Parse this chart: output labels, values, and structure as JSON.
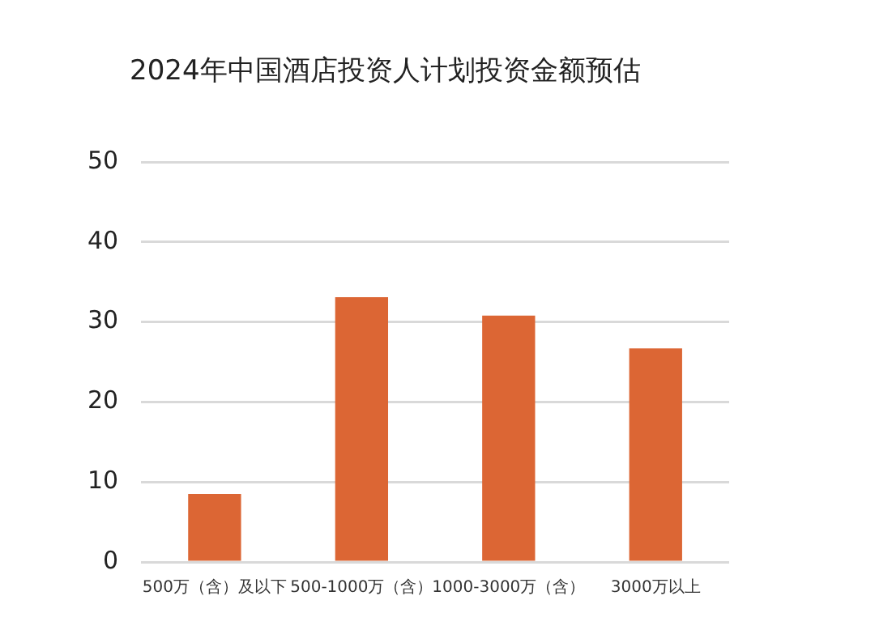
{
  "chart_data": {
    "type": "bar",
    "title": "2024年中国酒店投资人计划投资金额预估",
    "categories": [
      "500万（含）及以下",
      "500-1000万（含）",
      "1000-3000万（含）",
      "3000万以上"
    ],
    "values": [
      8.5,
      33.1,
      30.8,
      26.7
    ],
    "color": "#dc6634",
    "ylim": [
      0,
      50
    ],
    "yticks": [
      0,
      10,
      20,
      30,
      40,
      50
    ],
    "grid": "y",
    "legend": false
  }
}
